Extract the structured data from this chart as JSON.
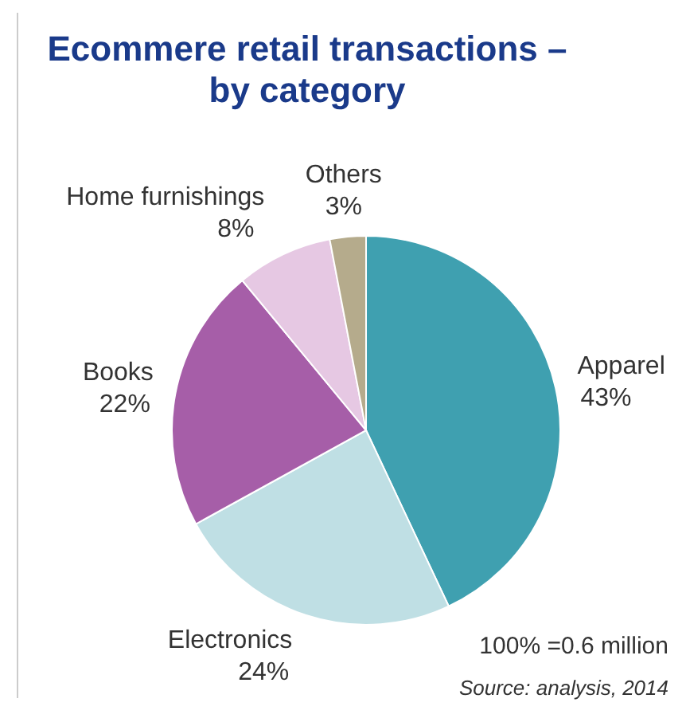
{
  "chart_data": {
    "type": "pie",
    "title": "Ecommere retail transactions – by category",
    "categories": [
      "Apparel",
      "Electronics",
      "Books",
      "Home furnishings",
      "Others"
    ],
    "values": [
      43,
      24,
      22,
      8,
      3
    ],
    "value_labels": [
      "43%",
      "24%",
      "22%",
      "8%",
      "3%"
    ],
    "colors": [
      "#3fa0b0",
      "#bfdfe4",
      "#a65ea8",
      "#e6c8e3",
      "#b5ab8c"
    ],
    "annotations": [
      "100% =0.6 million",
      "Source: analysis, 2014"
    ]
  }
}
